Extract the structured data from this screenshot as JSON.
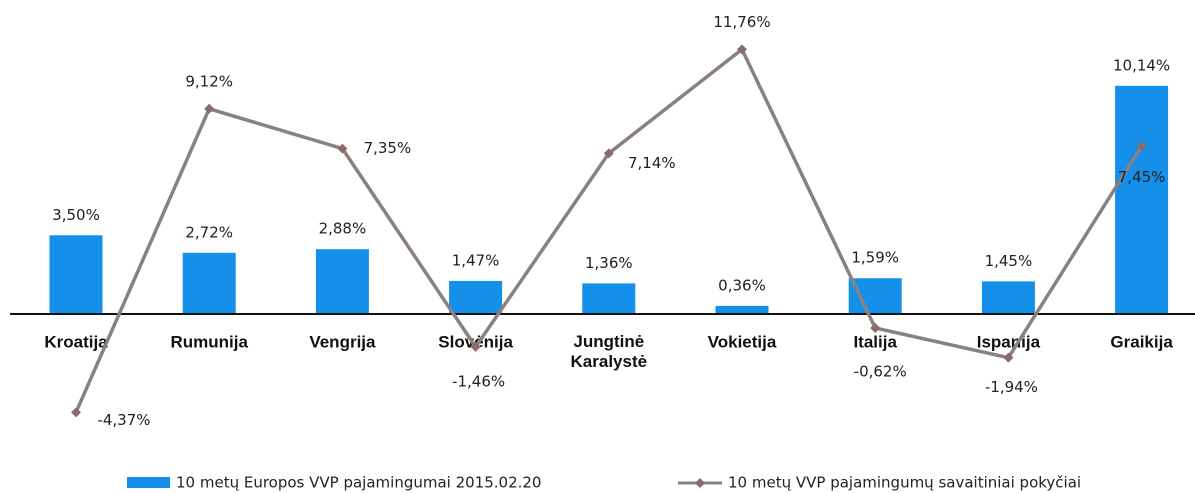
{
  "chart_data": {
    "type": "bar_line",
    "categories": [
      "Kroatija",
      "Rumunija",
      "Vengrija",
      "Slovėnija",
      "Jungtinė Karalystė",
      "Vokietija",
      "Italija",
      "Ispanija",
      "Graikija"
    ],
    "series": [
      {
        "name": "10 metų Europos VVP pajamingumai 2015.02.20",
        "type": "bar",
        "color": "#1490ea",
        "values": [
          3.5,
          2.72,
          2.88,
          1.47,
          1.36,
          0.36,
          1.59,
          1.45,
          10.14
        ],
        "value_labels": [
          "3,50%",
          "2,72%",
          "2,88%",
          "1,47%",
          "1,36%",
          "0,36%",
          "1,59%",
          "1,45%",
          "10,14%"
        ]
      },
      {
        "name": "10 metų VVP pajamingumų savaitiniai pokyčiai",
        "type": "line",
        "color": "#8a8080",
        "marker_color": "#8b6a6a",
        "values": [
          -4.37,
          9.12,
          7.35,
          -1.46,
          7.14,
          11.76,
          -0.62,
          -1.94,
          7.45
        ],
        "value_labels": [
          "-4,37%",
          "9,12%",
          "7,35%",
          "-1,46%",
          "7,14%",
          "11,76%",
          "-0,62%",
          "-1,94%",
          "7,45%"
        ]
      }
    ],
    "legend": "bottom"
  }
}
